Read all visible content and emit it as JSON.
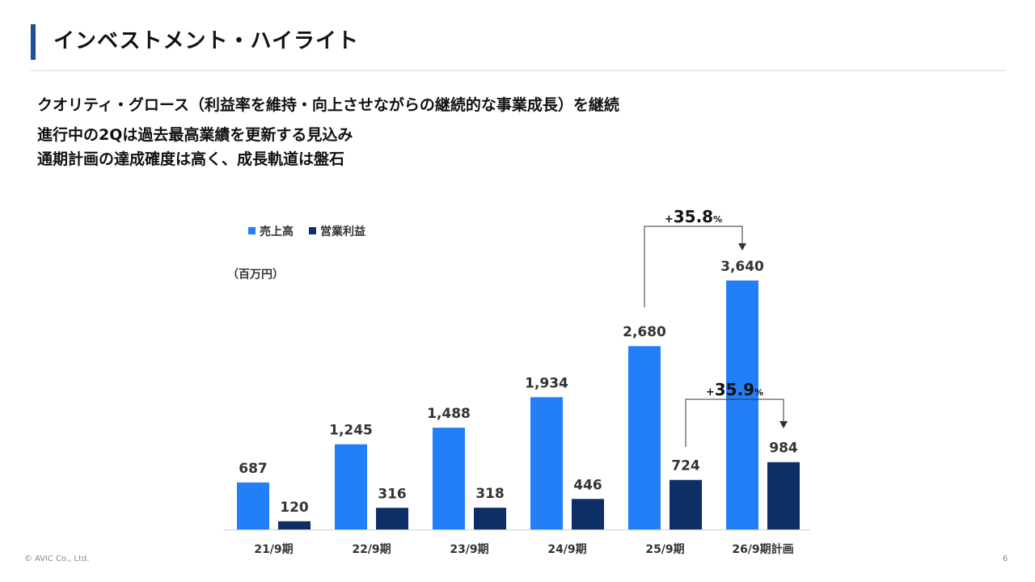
{
  "header": {
    "title": "インベストメント・ハイライト"
  },
  "body": {
    "headline": "クオリティ・グロース（利益率を維持・向上させながらの継続的な事業成長）を継続",
    "points": [
      "進行中の2Qは過去最高業績を更新する見込み",
      "通期計画の達成確度は高く、成長軌道は盤石"
    ]
  },
  "chart_data": {
    "type": "bar",
    "unit_label": "（百万円）",
    "categories": [
      "21/9期",
      "22/9期",
      "23/9期",
      "24/9期",
      "25/9期",
      "26/9期計画"
    ],
    "series": [
      {
        "name": "売上高",
        "color": "#237ff8",
        "values": [
          687,
          1245,
          1488,
          1934,
          2680,
          3640
        ],
        "labels": [
          "687",
          "1,245",
          "1,488",
          "1,934",
          "2,680",
          "3,640"
        ]
      },
      {
        "name": "営業利益",
        "color": "#0e2f66",
        "values": [
          120,
          316,
          318,
          446,
          724,
          984
        ],
        "labels": [
          "120",
          "316",
          "318",
          "446",
          "724",
          "984"
        ]
      }
    ],
    "ylim": [
      0,
      3640
    ],
    "legend": "top-left",
    "grid": false,
    "annotations": [
      {
        "text": "+35.8%",
        "number": "35.8",
        "series": 0,
        "from": 4,
        "to": 5
      },
      {
        "text": "+35.9%",
        "number": "35.9",
        "series": 1,
        "from": 4,
        "to": 5
      }
    ]
  },
  "footer": {
    "copyright": "© AViC Co., Ltd.",
    "page": "6"
  }
}
